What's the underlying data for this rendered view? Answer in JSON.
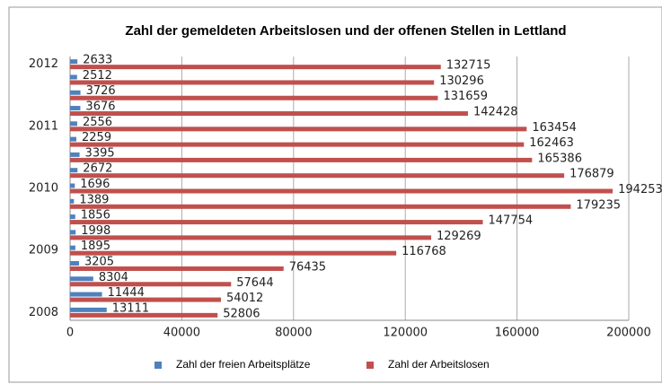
{
  "chart_data": {
    "type": "hbar",
    "title": "Zahl der gemeldeten Arbeitslosen und der offenen Stellen in Lettland",
    "categories": [
      "2008",
      null,
      null,
      null,
      "2009",
      null,
      null,
      null,
      "2010",
      null,
      null,
      null,
      "2011",
      null,
      null,
      null,
      "2012"
    ],
    "series": [
      {
        "name": "Zahl der freien Arbeitsplätze",
        "color": "#4f81bd",
        "values": [
          13111,
          11444,
          8304,
          3205,
          1895,
          1998,
          1856,
          1389,
          1696,
          2672,
          3395,
          2259,
          2556,
          3676,
          3726,
          2512,
          2633
        ]
      },
      {
        "name": "Zahl der Arbeitslosen",
        "color": "#c0504d",
        "values": [
          52806,
          54012,
          57644,
          76435,
          116768,
          129269,
          147754,
          179235,
          194253,
          176879,
          165386,
          162463,
          163454,
          142428,
          131659,
          130296,
          132715
        ]
      }
    ],
    "xlim": [
      0,
      200000
    ],
    "xticks": [
      0,
      40000,
      80000,
      120000,
      160000,
      200000
    ],
    "grid": true,
    "legend": "bottom"
  }
}
